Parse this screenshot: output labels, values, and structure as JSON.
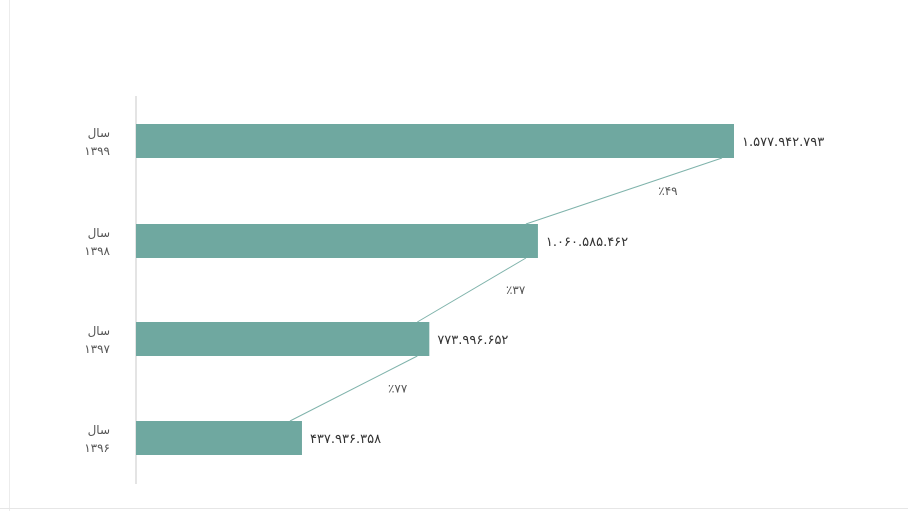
{
  "chart_data": {
    "type": "bar",
    "orientation": "horizontal",
    "categories": [
      [
        "سال",
        "۱۳۹۹"
      ],
      [
        "سال",
        "۱۳۹۸"
      ],
      [
        "سال",
        "۱۳۹۷"
      ],
      [
        "سال",
        "۱۳۹۶"
      ]
    ],
    "values": [
      1577942793,
      1060585462,
      773996652,
      437936358
    ],
    "value_labels": [
      "۱.۵۷۷.۹۴۲.۷۹۳",
      "۱.۰۶۰.۵۸۵.۴۶۲",
      "۷۷۳.۹۹۶.۶۵۲",
      "۴۳۷.۹۳۶.۳۵۸"
    ],
    "growth_labels": [
      "٪۴۹",
      "٪۳۷",
      "٪۷۷"
    ],
    "title": "",
    "xlabel": "",
    "ylabel": "",
    "grid": false,
    "legend": "none",
    "colors": {
      "bar": "#6fa8a0",
      "connector": "#7fb3ab",
      "axis": "#c8c8c8"
    }
  }
}
